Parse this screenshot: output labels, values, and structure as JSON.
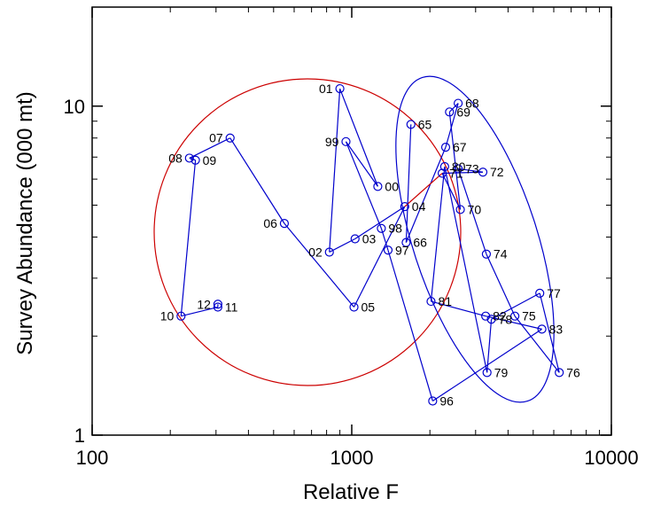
{
  "chart_data": {
    "type": "scatter",
    "title": "",
    "xlabel": "Relative F",
    "ylabel": "Survey Abundance (000 mt)",
    "x_scale": "log",
    "y_scale": "log",
    "xlim": [
      100,
      10000
    ],
    "ylim": [
      1,
      20
    ],
    "x_ticks": [
      100,
      1000,
      10000
    ],
    "x_tick_labels": [
      "100",
      "1000",
      "10000"
    ],
    "y_ticks": [
      1,
      10
    ],
    "y_tick_labels": [
      "1",
      "10"
    ],
    "grid": false,
    "colors": {
      "trajectory": "#0000cc",
      "circle": "#cc0000",
      "ellipse": "#0000cc",
      "last_segment": "#cc0000"
    },
    "points": [
      {
        "label": "65",
        "x": 1690,
        "y": 8.8
      },
      {
        "label": "66",
        "x": 1620,
        "y": 3.85
      },
      {
        "label": "67",
        "x": 2300,
        "y": 7.5
      },
      {
        "label": "68",
        "x": 2570,
        "y": 10.2
      },
      {
        "label": "69",
        "x": 2380,
        "y": 9.6
      },
      {
        "label": "70",
        "x": 2620,
        "y": 4.85
      },
      {
        "label": "71",
        "x": 2230,
        "y": 6.25
      },
      {
        "label": "72",
        "x": 3200,
        "y": 6.3
      },
      {
        "label": "73",
        "x": 2570,
        "y": 6.45
      },
      {
        "label": "74",
        "x": 3300,
        "y": 3.55
      },
      {
        "label": "75",
        "x": 4250,
        "y": 2.3
      },
      {
        "label": "76",
        "x": 6300,
        "y": 1.55
      },
      {
        "label": "77",
        "x": 5300,
        "y": 2.7
      },
      {
        "label": "78",
        "x": 3450,
        "y": 2.25
      },
      {
        "label": "79",
        "x": 3320,
        "y": 1.55
      },
      {
        "label": "80",
        "x": 2280,
        "y": 6.55
      },
      {
        "label": "81",
        "x": 2020,
        "y": 2.55
      },
      {
        "label": "82",
        "x": 3280,
        "y": 2.3
      },
      {
        "label": "83",
        "x": 5400,
        "y": 2.1
      },
      {
        "label": "96",
        "x": 2050,
        "y": 1.27
      },
      {
        "label": "97",
        "x": 1380,
        "y": 3.65
      },
      {
        "label": "98",
        "x": 1300,
        "y": 4.25
      },
      {
        "label": "99",
        "x": 950,
        "y": 7.8
      },
      {
        "label": "00",
        "x": 1260,
        "y": 5.7
      },
      {
        "label": "01",
        "x": 900,
        "y": 11.3
      },
      {
        "label": "02",
        "x": 820,
        "y": 3.6
      },
      {
        "label": "03",
        "x": 1030,
        "y": 3.95
      },
      {
        "label": "04",
        "x": 1600,
        "y": 4.95
      },
      {
        "label": "05",
        "x": 1020,
        "y": 2.45
      },
      {
        "label": "06",
        "x": 550,
        "y": 4.4
      },
      {
        "label": "07",
        "x": 340,
        "y": 8.0
      },
      {
        "label": "08",
        "x": 237,
        "y": 6.95
      },
      {
        "label": "09",
        "x": 250,
        "y": 6.85
      },
      {
        "label": "10",
        "x": 220,
        "y": 2.3
      },
      {
        "label": "11",
        "x": 305,
        "y": 2.45
      },
      {
        "label": "12",
        "x": 305,
        "y": 2.5
      }
    ],
    "trajectory_order": [
      "65",
      "66",
      "67",
      "68",
      "69",
      "70",
      "71",
      "72",
      "73",
      "74",
      "75",
      "76",
      "77",
      "78",
      "79",
      "80",
      "81",
      "82",
      "83",
      "96",
      "97",
      "98",
      "99",
      "00",
      "01",
      "02",
      "03",
      "04",
      "05",
      "06",
      "07",
      "08",
      "09",
      "10",
      "11",
      "12"
    ]
  }
}
